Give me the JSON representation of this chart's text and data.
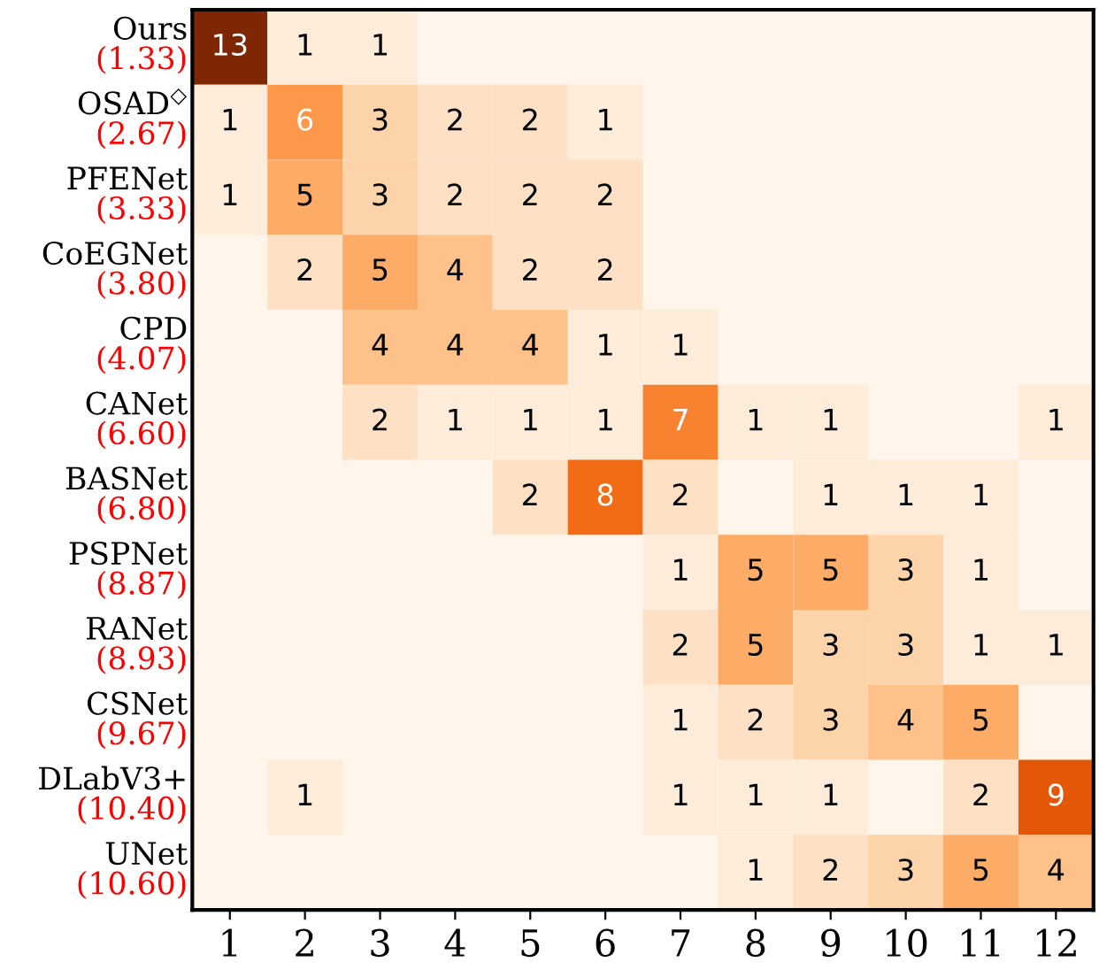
{
  "chart_data": {
    "type": "heatmap",
    "categories": [
      "1",
      "2",
      "3",
      "4",
      "5",
      "6",
      "7",
      "8",
      "9",
      "10",
      "11",
      "12"
    ],
    "y_categories": [
      "Ours\n(1.33)",
      "OSAD$^{◇}$\n(2.67)",
      "PFENet\n(3.33)",
      "CoEGNet\n(3.80)",
      "CPD\n(4.07)",
      "CANet\n(6.60)",
      "BASNet\n(6.80)",
      "PSPNet\n(8.87)",
      "RANet\n(8.93)",
      "CSNet\n(9.67)",
      "DLabV3+\n(10.40)",
      "UNet\n(10.60)"
    ],
    "cells": [
      [
        13,
        1,
        1,
        null,
        null,
        null,
        null,
        null,
        null,
        null,
        null,
        null
      ],
      [
        1,
        6,
        3,
        2,
        2,
        1,
        null,
        null,
        null,
        null,
        null,
        null
      ],
      [
        1,
        5,
        3,
        2,
        2,
        2,
        null,
        null,
        null,
        null,
        null,
        null
      ],
      [
        null,
        2,
        5,
        4,
        2,
        2,
        null,
        null,
        null,
        null,
        null,
        null
      ],
      [
        null,
        null,
        4,
        4,
        4,
        1,
        1,
        null,
        null,
        null,
        null,
        null
      ],
      [
        null,
        null,
        2,
        1,
        1,
        1,
        7,
        1,
        1,
        null,
        null,
        1
      ],
      [
        null,
        null,
        null,
        null,
        2,
        8,
        2,
        null,
        1,
        1,
        1,
        null
      ],
      [
        null,
        null,
        null,
        null,
        null,
        null,
        1,
        5,
        5,
        3,
        1,
        null
      ],
      [
        null,
        null,
        null,
        null,
        null,
        null,
        2,
        5,
        3,
        3,
        1,
        1
      ],
      [
        null,
        null,
        null,
        null,
        null,
        null,
        1,
        2,
        3,
        4,
        5,
        null
      ],
      [
        null,
        1,
        null,
        null,
        null,
        null,
        1,
        1,
        1,
        null,
        2,
        9
      ],
      [
        null,
        null,
        null,
        null,
        null,
        null,
        null,
        1,
        2,
        3,
        5,
        4
      ]
    ],
    "data_labels": true
  }
}
